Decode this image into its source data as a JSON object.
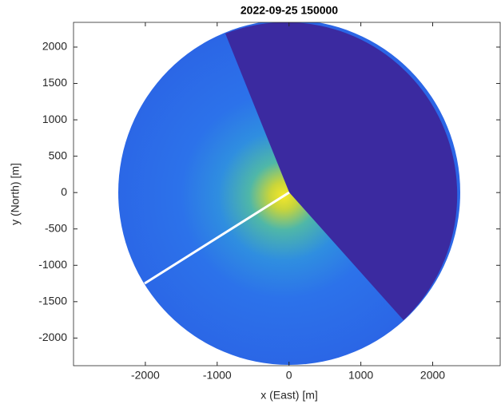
{
  "chart_data": {
    "type": "image",
    "title": "2022-09-25 150000",
    "xlabel": "x (East) [m]",
    "ylabel": "y (North) [m]",
    "xlim": [
      -3000,
      2940
    ],
    "ylim": [
      -2380,
      2340
    ],
    "xticks": [
      -2000,
      -1000,
      0,
      1000,
      2000
    ],
    "yticks": [
      -2000,
      -1500,
      -1000,
      -500,
      0,
      500,
      1000,
      1500,
      2000
    ]
  }
}
